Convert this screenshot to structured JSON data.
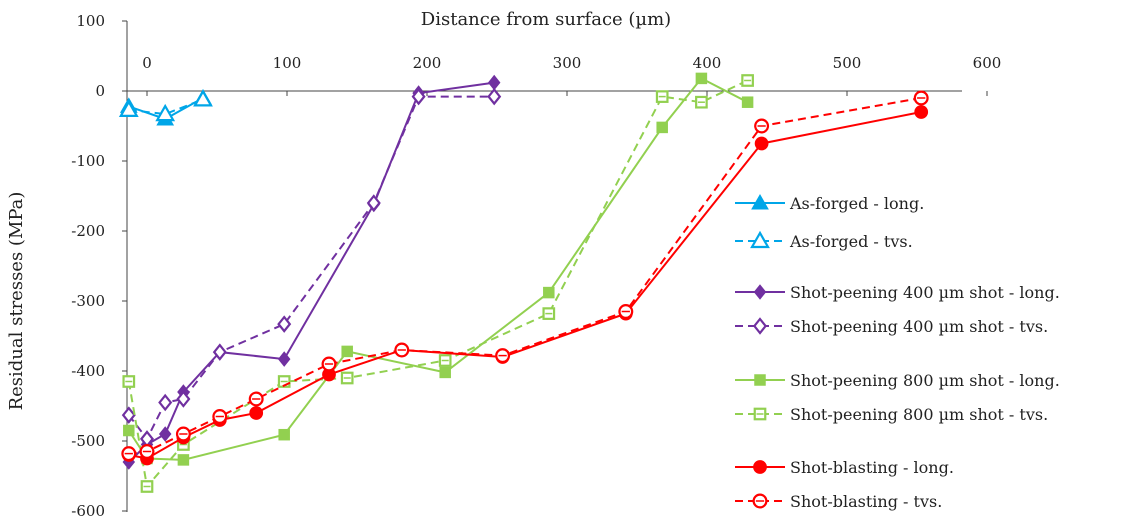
{
  "chart_data": {
    "type": "line",
    "title": "",
    "xlabel": "Distance from surface (µm)",
    "ylabel": "Residual stresses (MPa)",
    "xlim": [
      -15,
      600
    ],
    "ylim": [
      -600,
      100
    ],
    "xticks": [
      "0",
      "100",
      "200",
      "300",
      "400",
      "500",
      "600"
    ],
    "yticks": [
      "100",
      "0",
      "-100",
      "-200",
      "-300",
      "-400",
      "-500",
      "-600"
    ],
    "x_axis_position": "top",
    "grid": false,
    "legend_position": "right",
    "series": [
      {
        "name": "As-forged - long.",
        "color": "#00A6E8",
        "line": "solid",
        "marker": "triangle-filled",
        "x": [
          -13,
          13,
          40
        ],
        "y": [
          -22,
          -40,
          -10
        ]
      },
      {
        "name": "As-forged - tvs.",
        "color": "#00A6E8",
        "line": "dashed",
        "marker": "triangle-open",
        "x": [
          -13,
          13,
          40
        ],
        "y": [
          -27,
          -33,
          -12
        ]
      },
      {
        "name": "Shot-peening 400 µm shot - long.",
        "color": "#7030A0",
        "line": "solid",
        "marker": "diamond-filled",
        "x": [
          -13,
          0,
          13,
          26,
          52,
          98,
          162,
          194,
          248
        ],
        "y": [
          -530,
          -505,
          -490,
          -430,
          -373,
          -383,
          -162,
          -3,
          12
        ]
      },
      {
        "name": "Shot-peening 400 µm shot - tvs.",
        "color": "#7030A0",
        "line": "dashed",
        "marker": "diamond-open",
        "x": [
          -13,
          0,
          13,
          26,
          52,
          98,
          162,
          194,
          248
        ],
        "y": [
          -463,
          -497,
          -445,
          -440,
          -373,
          -333,
          -160,
          -8,
          -8
        ]
      },
      {
        "name": "Shot-peening 800 µm shot - long.",
        "color": "#92D050",
        "line": "solid",
        "marker": "square-filled",
        "x": [
          -13,
          0,
          26,
          98,
          143,
          213,
          287,
          368,
          396,
          429
        ],
        "y": [
          -485,
          -525,
          -527,
          -491,
          -372,
          -402,
          -288,
          -52,
          18,
          -16
        ]
      },
      {
        "name": "Shot-peening 800 µm shot - tvs.",
        "color": "#92D050",
        "line": "dashed",
        "marker": "square-open",
        "x": [
          -13,
          0,
          26,
          98,
          143,
          213,
          287,
          368,
          396,
          429
        ],
        "y": [
          -415,
          -565,
          -505,
          -415,
          -410,
          -385,
          -318,
          -8,
          -16,
          15
        ]
      },
      {
        "name": "Shot-blasting - long.",
        "color": "#FF0000",
        "line": "solid",
        "marker": "circle-filled",
        "x": [
          -13,
          0,
          26,
          52,
          78,
          130,
          182,
          254,
          342,
          439,
          553
        ],
        "y": [
          -520,
          -525,
          -495,
          -470,
          -460,
          -405,
          -370,
          -380,
          -318,
          -75,
          -30
        ]
      },
      {
        "name": "Shot-blasting - tvs.",
        "color": "#FF0000",
        "line": "dashed",
        "marker": "circle-open",
        "x": [
          -13,
          0,
          26,
          52,
          78,
          130,
          182,
          254,
          342,
          439,
          553
        ],
        "y": [
          -518,
          -515,
          -490,
          -465,
          -440,
          -390,
          -370,
          -378,
          -315,
          -50,
          -10
        ]
      }
    ]
  }
}
